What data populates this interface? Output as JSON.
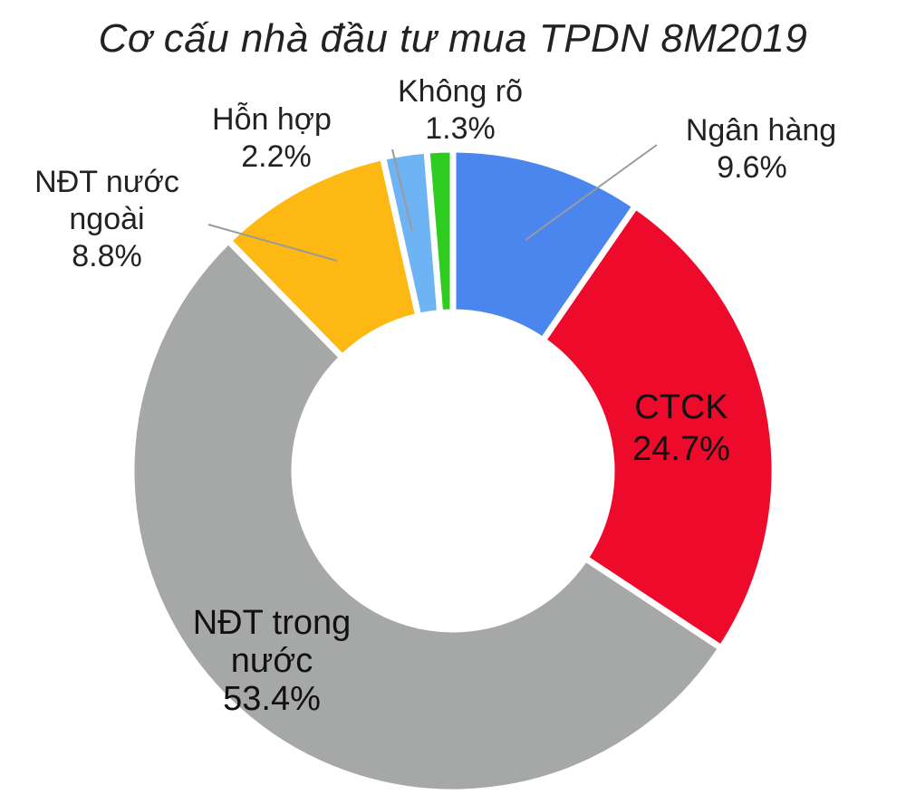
{
  "chart_data": {
    "type": "pie",
    "title": "Cơ cấu nhà đầu tư mua TPDN 8M2019",
    "donut": true,
    "slices": [
      {
        "name": "Ngân hàng",
        "value": 9.6,
        "label": "9.6%",
        "color": "#4a86ee"
      },
      {
        "name": "CTCK",
        "value": 24.7,
        "label": "24.7%",
        "color": "#ee0a2a"
      },
      {
        "name": "NĐT trong nước",
        "value": 53.4,
        "label": "53.4%",
        "color": "#a5a8a6"
      },
      {
        "name": "NĐT nước ngoài",
        "value": 8.8,
        "label": "8.8%",
        "color": "#fdb813"
      },
      {
        "name": "Hỗn hợp",
        "value": 2.2,
        "label": "2.2%",
        "color": "#6eb4f5"
      },
      {
        "name": "Không rõ",
        "value": 1.3,
        "label": "1.3%",
        "color": "#2ecc1f"
      }
    ]
  }
}
